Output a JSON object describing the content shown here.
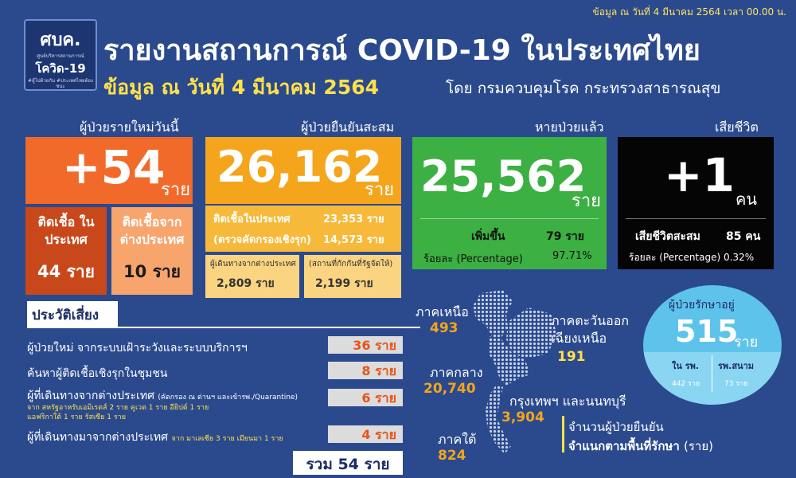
{
  "header": {
    "top_date": "ข้อมูล ณ วันที่ 4 มีนาคม 2564 เวลา 00.00 น.",
    "logo_mark": "ศบค.",
    "logo_small": "ศูนย์บริหารสถานการณ์",
    "logo_big": "โควิด-19",
    "logo_tagline": "#สู้ไปด้วยกัน #ประเทศไทยต้องชนะ",
    "title": "รายงานสถานการณ์ COVID-19 ในประเทศไทย",
    "subtitle": "ข้อมูล ณ วันที่ 4 มีนาคม 2564",
    "subtitle_by": "โดย กรมควบคุมโรค กระทรวงสาธารณสุข"
  },
  "new_cases": {
    "label": "ผู้ป่วยรายใหม่วันนี้",
    "value": "+54",
    "unit": "ราย",
    "domestic_title": "ติดเชื้อ ในประเทศ",
    "domestic_value": "44 ราย",
    "imported_title": "ติดเชื้อจาก ต่างประเทศ",
    "imported_value": "10 ราย"
  },
  "cumulative": {
    "label": "ผู้ป่วยยืนยันสะสม",
    "value": "26,162",
    "unit": "ราย",
    "domestic_label": "ติดเชื้อในประเทศ",
    "domestic_value": "23,353 ราย",
    "proactive_label": "(ตรวจคัดกรองเชิงรุก)",
    "proactive_value": "14,573 ราย",
    "travel_label": "ผู้เดินทางจากต่างประเทศ",
    "travel_value": "2,809 ราย",
    "quarantine_label": "(สถานที่กักกันที่รัฐจัดให้)",
    "quarantine_value": "2,199 ราย"
  },
  "recovered": {
    "label": "หายป่วยแล้ว",
    "value": "25,562",
    "unit": "ราย",
    "increase_label": "เพิ่มขึ้น",
    "increase_value": "79 ราย",
    "pct_label": "ร้อยละ (Percentage)",
    "pct_value": "97.71%",
    "color": "#3cb043"
  },
  "deaths": {
    "label": "เสียชีวิต",
    "value": "+1",
    "unit": "คน",
    "cum_label": "เสียชีวิตสะสม",
    "cum_value": "85 คน",
    "pct_text": "ร้อยละ (Percentage) 0.32%"
  },
  "risk": {
    "title": "ประวัติเสี่ยง",
    "rows": [
      {
        "label": "ผู้ป่วยใหม่ จากระบบเฝ้าระวังและระบบบริการฯ",
        "value": "36 ราย"
      },
      {
        "label": "ค้นหาผู้ติดเชื้อเชิงรุกในชุมชน",
        "value": "8 ราย"
      },
      {
        "label": "ผู้ที่เดินทางจากต่างประเทศ",
        "inline_note": "(คัดกรอง ณ ด่านฯ และเข้ารพ./Quarantine)",
        "value": "6 ราย",
        "note1": "จาก สหรัฐอาหรับเอมิเรตส์ 2 ราย คูเวต 1 ราย อียิปต์ 1 ราย",
        "note2": "แอฟริกาใต้ 1 ราย รัสเซีย 1 ราย"
      },
      {
        "label": "ผู้ที่เดินทางมาจากต่างประเทศ",
        "inline_note": "จาก มาเลเซีย 3 ราย เมียนมา 1 ราย",
        "value": "4 ราย"
      }
    ],
    "total": "รวม 54 ราย"
  },
  "regions": {
    "north": {
      "name": "ภาคเหนือ",
      "value": "493"
    },
    "northeast": {
      "name": "ภาคตะวันออก เฉียงเหนือ",
      "value": "191"
    },
    "central": {
      "name": "ภาคกลาง",
      "value": "20,740"
    },
    "bangkok": {
      "name": "กรุงเทพฯ และนนทบุรี",
      "value": "3,904"
    },
    "south": {
      "name": "ภาคใต้",
      "value": "824"
    },
    "caption1": "จำนวนผู้ป่วยยืนยัน",
    "caption2": "จำแนกตามพื้นที่รักษา",
    "caption2_unit": "(ราย)"
  },
  "treating": {
    "label": "ผู้ป่วยรักษาอยู่",
    "value": "515",
    "unit": "ราย",
    "hospital_label": "ใน รพ.",
    "hospital_value": "442 ราย",
    "field_label": "รพ.สนาม",
    "field_value": "73 ราย"
  }
}
